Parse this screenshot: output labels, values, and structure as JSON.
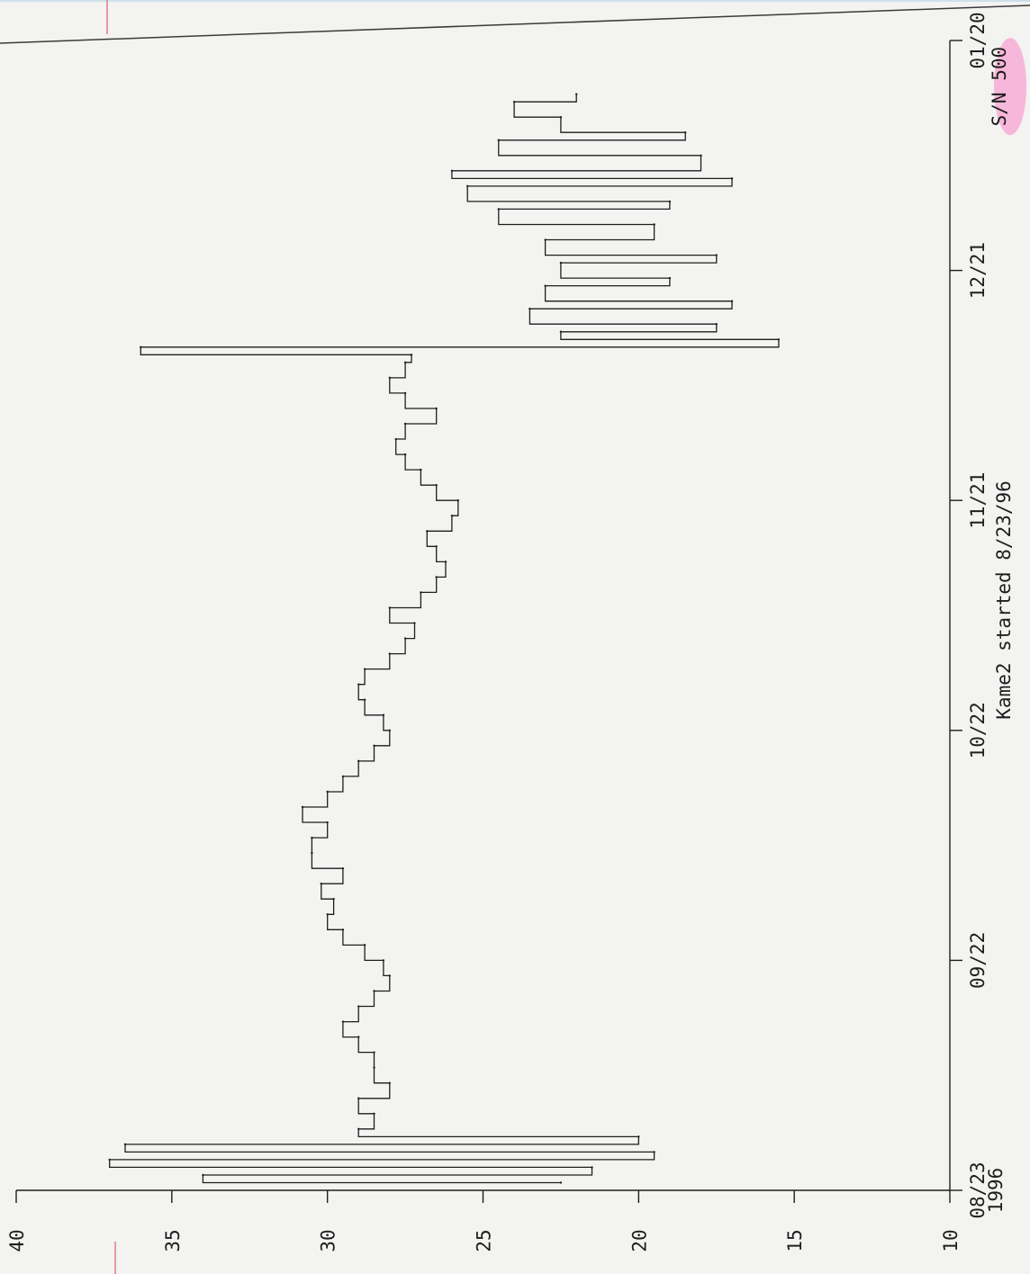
{
  "chart_data": {
    "type": "line",
    "orientation": "rotated-90",
    "title": "",
    "xlabel": "",
    "ylabel": "",
    "x_tick_labels": [
      "08/23",
      "09/22",
      "10/22",
      "11/21",
      "12/21",
      "01/20"
    ],
    "x_year_label": "1996",
    "y_tick_labels": [
      "10",
      "15",
      "20",
      "25",
      "30",
      "35",
      "40"
    ],
    "ylim": [
      10,
      40
    ],
    "annotation_left": "Kame2 started 8/23/96",
    "annotation_right": "S/N 500",
    "grid": false,
    "series": [
      {
        "color": "#1e1e1e",
        "points": [
          [
            "1996-08-24",
            22.5
          ],
          [
            "1996-08-25",
            34.0
          ],
          [
            "1996-08-26",
            21.5
          ],
          [
            "1996-08-27",
            37.0
          ],
          [
            "1996-08-28",
            19.5
          ],
          [
            "1996-08-29",
            36.5
          ],
          [
            "1996-08-30",
            20.0
          ],
          [
            "1996-08-31",
            29.0
          ],
          [
            "1996-09-02",
            28.5
          ],
          [
            "1996-09-04",
            29.0
          ],
          [
            "1996-09-06",
            28.0
          ],
          [
            "1996-09-08",
            28.5
          ],
          [
            "1996-09-10",
            28.5
          ],
          [
            "1996-09-12",
            29.0
          ],
          [
            "1996-09-14",
            29.5
          ],
          [
            "1996-09-16",
            29.0
          ],
          [
            "1996-09-18",
            28.5
          ],
          [
            "1996-09-20",
            28.0
          ],
          [
            "1996-09-22",
            28.2
          ],
          [
            "1996-09-24",
            28.8
          ],
          [
            "1996-09-26",
            29.5
          ],
          [
            "1996-09-28",
            30.0
          ],
          [
            "1996-09-30",
            29.8
          ],
          [
            "1996-10-02",
            30.2
          ],
          [
            "1996-10-04",
            29.5
          ],
          [
            "1996-10-06",
            30.5
          ],
          [
            "1996-10-08",
            30.5
          ],
          [
            "1996-10-10",
            30.0
          ],
          [
            "1996-10-12",
            30.8
          ],
          [
            "1996-10-14",
            30.0
          ],
          [
            "1996-10-16",
            29.5
          ],
          [
            "1996-10-18",
            29.0
          ],
          [
            "1996-10-20",
            28.5
          ],
          [
            "1996-10-22",
            28.0
          ],
          [
            "1996-10-24",
            28.2
          ],
          [
            "1996-10-26",
            28.8
          ],
          [
            "1996-10-28",
            29.0
          ],
          [
            "1996-10-30",
            28.8
          ],
          [
            "1996-11-01",
            28.0
          ],
          [
            "1996-11-03",
            27.5
          ],
          [
            "1996-11-05",
            27.2
          ],
          [
            "1996-11-07",
            28.0
          ],
          [
            "1996-11-09",
            27.0
          ],
          [
            "1996-11-11",
            26.5
          ],
          [
            "1996-11-13",
            26.2
          ],
          [
            "1996-11-15",
            26.5
          ],
          [
            "1996-11-17",
            26.8
          ],
          [
            "1996-11-19",
            26.0
          ],
          [
            "1996-11-21",
            25.8
          ],
          [
            "1996-11-23",
            26.5
          ],
          [
            "1996-11-25",
            27.0
          ],
          [
            "1996-11-27",
            27.5
          ],
          [
            "1996-11-29",
            27.8
          ],
          [
            "1996-12-01",
            27.5
          ],
          [
            "1996-12-03",
            26.5
          ],
          [
            "1996-12-05",
            27.5
          ],
          [
            "1996-12-07",
            28.0
          ],
          [
            "1996-12-09",
            27.5
          ],
          [
            "1996-12-10",
            27.3
          ],
          [
            "1996-12-11",
            36.0
          ],
          [
            "1996-12-12",
            15.5
          ],
          [
            "1996-12-13",
            22.5
          ],
          [
            "1996-12-14",
            17.5
          ],
          [
            "1996-12-16",
            23.5
          ],
          [
            "1996-12-17",
            17.0
          ],
          [
            "1996-12-19",
            23.0
          ],
          [
            "1996-12-20",
            19.0
          ],
          [
            "1996-12-22",
            22.5
          ],
          [
            "1996-12-23",
            17.5
          ],
          [
            "1996-12-25",
            23.0
          ],
          [
            "1996-12-27",
            19.5
          ],
          [
            "1996-12-29",
            24.5
          ],
          [
            "1996-12-30",
            19.0
          ],
          [
            "1997-01-01",
            25.5
          ],
          [
            "1997-01-02",
            17.0
          ],
          [
            "1997-01-03",
            26.0
          ],
          [
            "1997-01-05",
            18.0
          ],
          [
            "1997-01-07",
            24.5
          ],
          [
            "1997-01-08",
            18.5
          ],
          [
            "1997-01-10",
            22.5
          ],
          [
            "1997-01-12",
            24.0
          ],
          [
            "1997-01-13",
            22.0
          ]
        ]
      }
    ]
  }
}
